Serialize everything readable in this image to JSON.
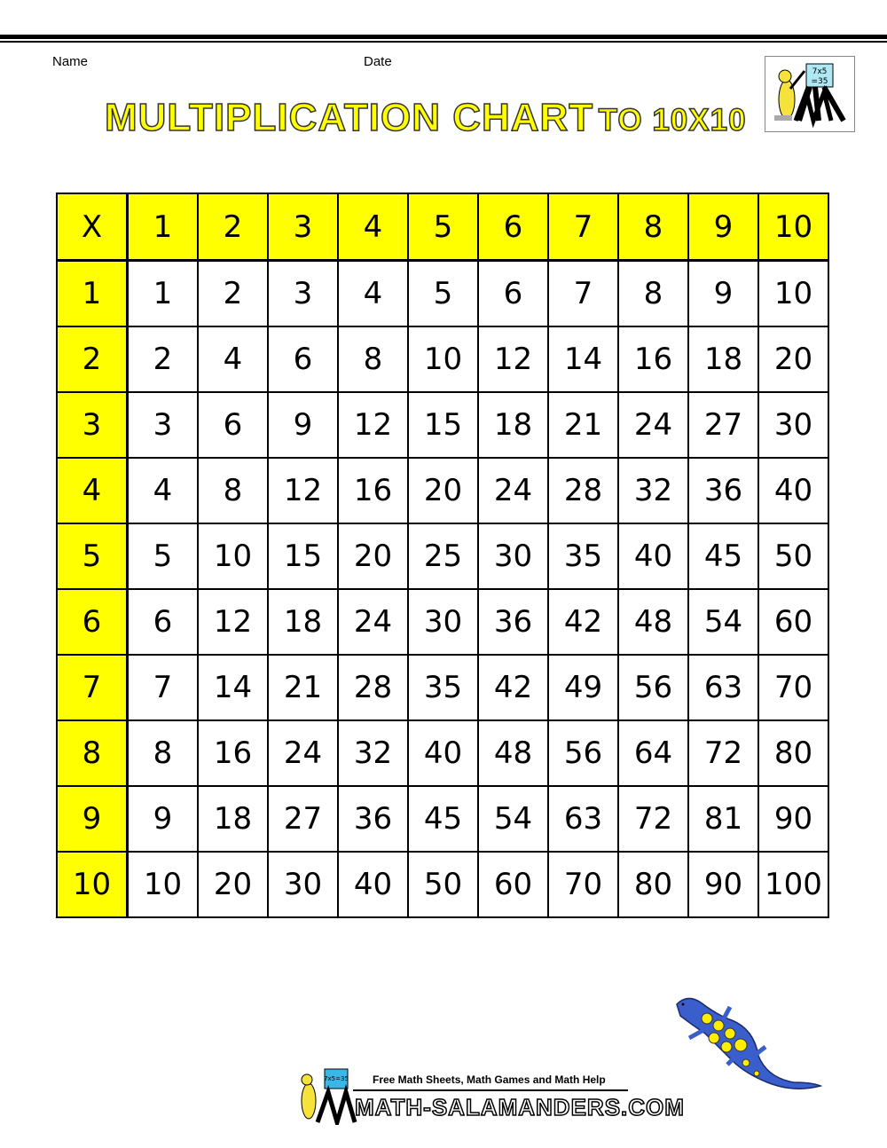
{
  "header": {
    "name_label": "Name",
    "date_label": "Date"
  },
  "title": {
    "main": "MULTIPLICATION CHART",
    "suffix": "TO 10X10"
  },
  "logo": {
    "board_text_line1": "7x5",
    "board_text_line2": "=35"
  },
  "table": {
    "corner": "X",
    "column_headers": [
      "1",
      "2",
      "3",
      "4",
      "5",
      "6",
      "7",
      "8",
      "9",
      "10"
    ],
    "rows": [
      {
        "header": "1",
        "cells": [
          "1",
          "2",
          "3",
          "4",
          "5",
          "6",
          "7",
          "8",
          "9",
          "10"
        ]
      },
      {
        "header": "2",
        "cells": [
          "2",
          "4",
          "6",
          "8",
          "10",
          "12",
          "14",
          "16",
          "18",
          "20"
        ]
      },
      {
        "header": "3",
        "cells": [
          "3",
          "6",
          "9",
          "12",
          "15",
          "18",
          "21",
          "24",
          "27",
          "30"
        ]
      },
      {
        "header": "4",
        "cells": [
          "4",
          "8",
          "12",
          "16",
          "20",
          "24",
          "28",
          "32",
          "36",
          "40"
        ]
      },
      {
        "header": "5",
        "cells": [
          "5",
          "10",
          "15",
          "20",
          "25",
          "30",
          "35",
          "40",
          "45",
          "50"
        ]
      },
      {
        "header": "6",
        "cells": [
          "6",
          "12",
          "18",
          "24",
          "30",
          "36",
          "42",
          "48",
          "54",
          "60"
        ]
      },
      {
        "header": "7",
        "cells": [
          "7",
          "14",
          "21",
          "28",
          "35",
          "42",
          "49",
          "56",
          "63",
          "70"
        ]
      },
      {
        "header": "8",
        "cells": [
          "8",
          "16",
          "24",
          "32",
          "40",
          "48",
          "56",
          "64",
          "72",
          "80"
        ]
      },
      {
        "header": "9",
        "cells": [
          "9",
          "18",
          "27",
          "36",
          "45",
          "54",
          "63",
          "72",
          "81",
          "90"
        ]
      },
      {
        "header": "10",
        "cells": [
          "10",
          "20",
          "30",
          "40",
          "50",
          "60",
          "70",
          "80",
          "90",
          "100"
        ]
      }
    ]
  },
  "footer": {
    "tagline": "Free Math Sheets, Math Games and Math Help",
    "site": "MATH-SALAMANDERS.COM",
    "board_text": "7x5=35"
  },
  "colors": {
    "header_fill": "#ffff00",
    "salamander_body": "#3a5fcd",
    "salamander_spots": "#ffee00"
  }
}
